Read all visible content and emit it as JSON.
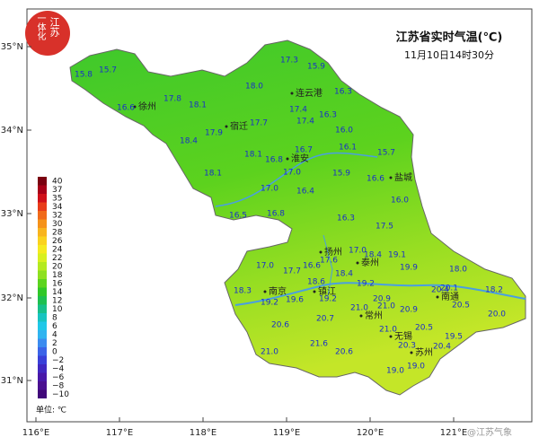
{
  "title": "江苏省实时气温(℃)",
  "subtitle": "11月10日14时30分",
  "logo": {
    "top": "江苏",
    "left": "一体化"
  },
  "watermark": "@江苏气象",
  "lat_labels": [
    "35°N",
    "34°N",
    "33°N",
    "32°N",
    "31°N"
  ],
  "lon_labels": [
    "116°E",
    "117°E",
    "118°E",
    "119°E",
    "120°E",
    "121°E"
  ],
  "legend": {
    "unit": "单位: ℃",
    "ticks": [
      "40",
      "37",
      "35",
      "34",
      "32",
      "30",
      "28",
      "26",
      "24",
      "22",
      "20",
      "18",
      "16",
      "14",
      "12",
      "10",
      "8",
      "6",
      "4",
      "2",
      "0",
      "−2",
      "−4",
      "−6",
      "−8",
      "−10"
    ],
    "colors": [
      "#7a0010",
      "#a80018",
      "#d0101a",
      "#e83c1a",
      "#f06a1a",
      "#f5921a",
      "#f8b41e",
      "#fad21e",
      "#f5ea20",
      "#d8f020",
      "#b4ea20",
      "#8ee020",
      "#5cd41e",
      "#30c828",
      "#1ec050",
      "#18c08a",
      "#18c4c0",
      "#20c8e8",
      "#30b4f0",
      "#3c8cf0",
      "#3c64e8",
      "#3a40d8",
      "#4028c0",
      "#4818a8",
      "#4a1090",
      "#40087a"
    ]
  },
  "cities": [
    "徐州",
    "连云港",
    "宿迁",
    "淮安",
    "盐城",
    "扬州",
    "泰州",
    "南京",
    "镇江",
    "常州",
    "无锡",
    "苏州",
    "南通"
  ],
  "stations": [
    "15.8",
    "15.7",
    "16.6",
    "17.8",
    "18.1",
    "18.0",
    "17.3",
    "15.9",
    "16.3",
    "17.4",
    "17.7",
    "17.4",
    "16.3",
    "16.0",
    "18.4",
    "17.9",
    "18.1",
    "16.8",
    "16.7",
    "16.1",
    "15.7",
    "17.0",
    "15.9",
    "16.6",
    "18.1",
    "17.0",
    "16.4",
    "16.0",
    "16.5",
    "16.8",
    "16.3",
    "17.5",
    "17.0",
    "18.4",
    "19.1",
    "17.0",
    "17.7",
    "16.6",
    "17.6",
    "18.4",
    "19.9",
    "18.0",
    "18.6",
    "19.2",
    "18.3",
    "19.2",
    "19.6",
    "19.2",
    "20.9",
    "21.0",
    "20.1",
    "20.4",
    "18.2",
    "20.5",
    "20.9",
    "20.0",
    "20.6",
    "20.7",
    "21.0",
    "21.0",
    "20.5",
    "19.5",
    "21.6",
    "20.3",
    "20.4",
    "21.0",
    "20.6",
    "19.0",
    "19.0"
  ]
}
